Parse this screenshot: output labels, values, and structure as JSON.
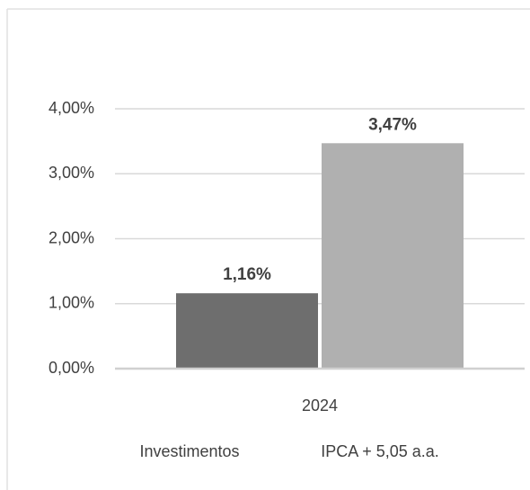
{
  "chart_data": {
    "type": "bar",
    "categories": [
      "2024"
    ],
    "series": [
      {
        "name": "Investimentos",
        "color": "#6e6e6e",
        "values": [
          1.16
        ],
        "value_labels": [
          "1,16%"
        ]
      },
      {
        "name": "IPCA + 5,05 a.a.",
        "color": "#b0b0b0",
        "values": [
          3.47
        ],
        "value_labels": [
          "3,47%"
        ]
      }
    ],
    "ylim": [
      0,
      4
    ],
    "yticks": [
      {
        "value": 0,
        "label": "0,00%"
      },
      {
        "value": 1,
        "label": "1,00%"
      },
      {
        "value": 2,
        "label": "2,00%"
      },
      {
        "value": 3,
        "label": "3,00%"
      },
      {
        "value": 4,
        "label": "4,00%"
      }
    ],
    "grid": true,
    "legend": "bottom"
  }
}
